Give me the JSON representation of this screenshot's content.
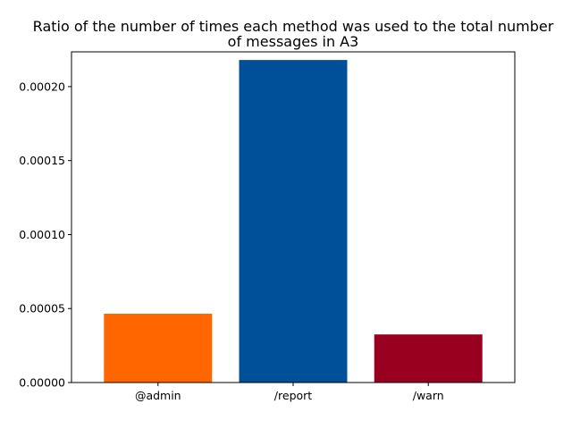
{
  "chart_data": {
    "type": "bar",
    "title": "Ratio of the number of times each method was used to the total number of messages in A3",
    "title_lines": [
      "Ratio of the number of times each method was used to the total number",
      "of messages in A3"
    ],
    "xlabel": "",
    "ylabel": "",
    "categories": [
      "@admin",
      "/report",
      "/warn"
    ],
    "values": [
      4.65e-05,
      0.000218,
      3.25e-05
    ],
    "colors": [
      "#ff6600",
      "#004f99",
      "#99001f"
    ],
    "ylim": [
      0,
      0.0002235
    ],
    "yticks": [
      0,
      5e-05,
      0.0001,
      0.00015,
      0.0002
    ],
    "ytick_labels": [
      "0.00000",
      "0.00005",
      "0.00010",
      "0.00015",
      "0.00020"
    ],
    "grid": false,
    "legend": "none"
  }
}
